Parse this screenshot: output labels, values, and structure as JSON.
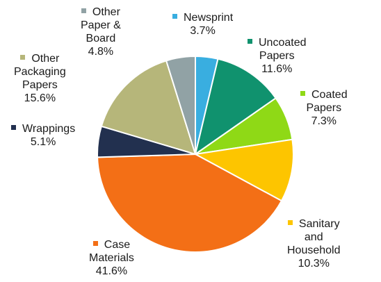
{
  "chart_data": {
    "type": "pie",
    "title": "",
    "slices": [
      {
        "name": "Newsprint",
        "value": 3.7,
        "label": "3.7%",
        "color": "#39aee0"
      },
      {
        "name": "Uncoated Papers",
        "value": 11.6,
        "label": "11.6%",
        "color": "#10926e"
      },
      {
        "name": "Coated Papers",
        "value": 7.3,
        "label": "7.3%",
        "color": "#8fd916"
      },
      {
        "name": "Sanitary and Household",
        "value": 10.3,
        "label": "10.3%",
        "color": "#fdc500"
      },
      {
        "name": "Case Materials",
        "value": 41.6,
        "label": "41.6%",
        "color": "#f36f16"
      },
      {
        "name": "Wrappings",
        "value": 5.1,
        "label": "5.1%",
        "color": "#22304f"
      },
      {
        "name": "Other Packaging Papers",
        "value": 15.6,
        "label": "15.6%",
        "color": "#b6b67a"
      },
      {
        "name": "Other Paper & Board",
        "value": 4.8,
        "label": "4.8%",
        "color": "#91a2a5"
      }
    ],
    "start_angle": "top",
    "direction": "clockwise",
    "legend": "labels beside slices"
  },
  "labels": {
    "newsprint": {
      "lines": [
        "Newsprint"
      ],
      "pct": "3.7%"
    },
    "uncoated": {
      "lines": [
        "Uncoated",
        "Papers"
      ],
      "pct": "11.6%"
    },
    "coated": {
      "lines": [
        "Coated",
        "Papers"
      ],
      "pct": "7.3%"
    },
    "sanitary": {
      "lines": [
        "Sanitary",
        "and",
        "Household"
      ],
      "pct": "10.3%"
    },
    "case": {
      "lines": [
        "Case",
        "Materials"
      ],
      "pct": "41.6%"
    },
    "wrappings": {
      "lines": [
        "Wrappings"
      ],
      "pct": "5.1%"
    },
    "otherpack": {
      "lines": [
        "Other",
        "Packaging",
        "Papers"
      ],
      "pct": "15.6%"
    },
    "otherboard": {
      "lines": [
        "Other",
        "Paper &",
        "Board"
      ],
      "pct": "4.8%"
    }
  }
}
